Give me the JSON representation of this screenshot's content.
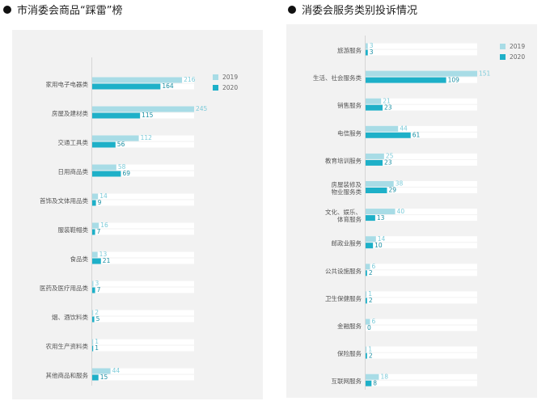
{
  "left": {
    "title": "市消委会商品“踩雷”榜",
    "chart_data": {
      "type": "bar",
      "orientation": "horizontal",
      "categories": [
        "家用电子电器类",
        "房屋及建材类",
        "交通工具类",
        "日用商品类",
        "首饰及文体用品类",
        "服装鞋帽类",
        "食品类",
        "医药及医疗用品类",
        "烟、酒饮料类",
        "农用生产资料类",
        "其他商品和服务"
      ],
      "series": [
        {
          "name": "2019",
          "values": [
            216,
            245,
            112,
            58,
            14,
            16,
            13,
            3,
            2,
            1,
            44
          ],
          "color": "#a8dce6"
        },
        {
          "name": "2020",
          "values": [
            164,
            115,
            56,
            69,
            9,
            7,
            21,
            7,
            5,
            1,
            15
          ],
          "color": "#1eb0c8"
        }
      ],
      "xlim": [
        0,
        245
      ],
      "legend": "top-right"
    }
  },
  "right": {
    "title": "消委会服务类别投诉情况",
    "chart_data": {
      "type": "bar",
      "orientation": "horizontal",
      "categories": [
        "旅游服务",
        "生活、社会服务类",
        "销售服务",
        "电信服务",
        "教育培训服务",
        "房屋装修及物业服务类",
        "文化、娱乐、体育服务",
        "邮政业服务",
        "公共设施服务",
        "卫生保健服务",
        "金融服务",
        "保险服务",
        "互联网服务"
      ],
      "series": [
        {
          "name": "2019",
          "values": [
            3,
            151,
            21,
            44,
            25,
            38,
            40,
            14,
            6,
            1,
            6,
            1,
            18
          ],
          "color": "#a8dce6"
        },
        {
          "name": "2020",
          "values": [
            3,
            109,
            23,
            61,
            23,
            29,
            13,
            10,
            2,
            2,
            0,
            2,
            8
          ],
          "color": "#1eb0c8"
        }
      ],
      "xlim": [
        0,
        151
      ],
      "legend": "top-right"
    }
  }
}
